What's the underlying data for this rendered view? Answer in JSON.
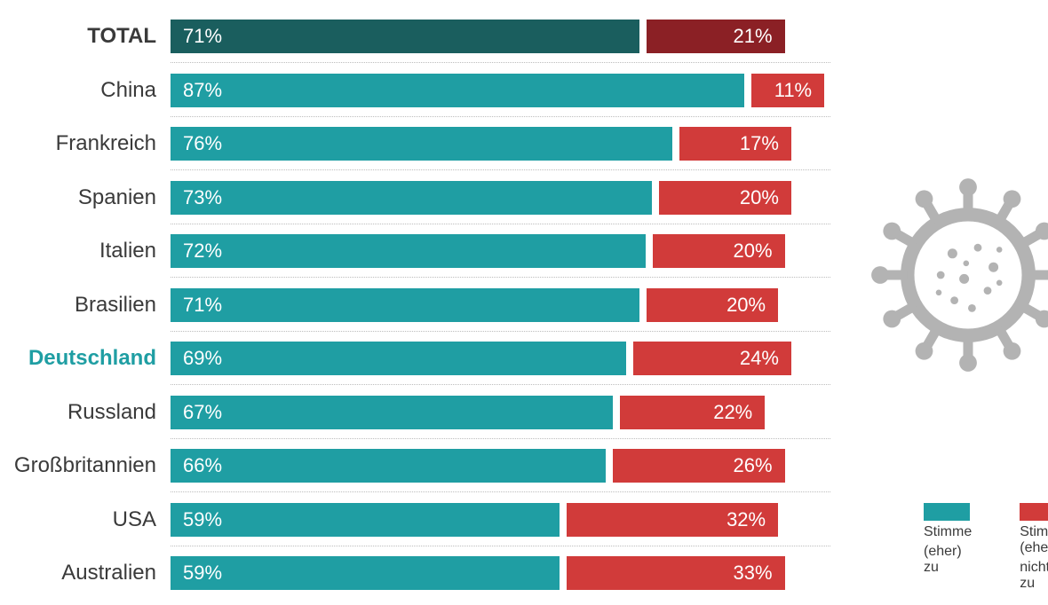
{
  "chart": {
    "type": "bar",
    "orientation": "horizontal",
    "background_color": "#ffffff",
    "grid_color": "#bdbdbd",
    "label_fontsize": 24,
    "value_fontsize": 22,
    "bar_gap_ratio": 0.01,
    "scale_max": 100,
    "colors": {
      "agree_total": "#1a5e5e",
      "agree": "#1f9ea3",
      "disagree_total": "#8b2025",
      "disagree": "#d13b3a",
      "label_default": "#3a3a3a",
      "label_highlight": "#1f9ea3"
    },
    "rows": [
      {
        "label": "TOTAL",
        "agree": 71,
        "disagree": 21,
        "is_total": true,
        "highlight": false
      },
      {
        "label": "China",
        "agree": 87,
        "disagree": 11,
        "is_total": false,
        "highlight": false
      },
      {
        "label": "Frankreich",
        "agree": 76,
        "disagree": 17,
        "is_total": false,
        "highlight": false
      },
      {
        "label": "Spanien",
        "agree": 73,
        "disagree": 20,
        "is_total": false,
        "highlight": false
      },
      {
        "label": "Italien",
        "agree": 72,
        "disagree": 20,
        "is_total": false,
        "highlight": false
      },
      {
        "label": "Brasilien",
        "agree": 71,
        "disagree": 20,
        "is_total": false,
        "highlight": false
      },
      {
        "label": "Deutschland",
        "agree": 69,
        "disagree": 24,
        "is_total": false,
        "highlight": true
      },
      {
        "label": "Russland",
        "agree": 67,
        "disagree": 22,
        "is_total": false,
        "highlight": false
      },
      {
        "label": "Großbritannien",
        "agree": 66,
        "disagree": 26,
        "is_total": false,
        "highlight": false
      },
      {
        "label": "USA",
        "agree": 59,
        "disagree": 32,
        "is_total": false,
        "highlight": false
      },
      {
        "label": "Australien",
        "agree": 59,
        "disagree": 33,
        "is_total": false,
        "highlight": false
      }
    ]
  },
  "legend": {
    "agree": {
      "swatch": "#1f9ea3",
      "line1": "Stimme",
      "line2": "(eher) zu"
    },
    "disagree": {
      "swatch": "#d13b3a",
      "line1": "Stimme (eher)",
      "line2": "nicht zu"
    }
  },
  "virus_icon": {
    "color": "#b3b3b3"
  }
}
